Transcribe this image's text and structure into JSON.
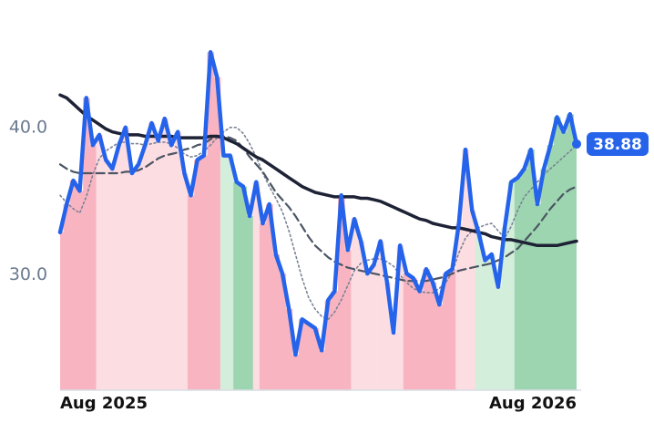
{
  "chart_data": {
    "type": "line",
    "categories": [
      "Aug 2025",
      null,
      null,
      null,
      null,
      null,
      null,
      null,
      null,
      null,
      null,
      null,
      null,
      null,
      null,
      null,
      null,
      null,
      null,
      null,
      null,
      null,
      null,
      null,
      null,
      null,
      null,
      null,
      null,
      null,
      null,
      null,
      null,
      null,
      null,
      null,
      null,
      null,
      null,
      null,
      null,
      null,
      null,
      null,
      null,
      null,
      null,
      null,
      null,
      null,
      null,
      null,
      null,
      null,
      null,
      null,
      null,
      null,
      null,
      null,
      null,
      null,
      null,
      null,
      null,
      null,
      null,
      null,
      null,
      null,
      null,
      null,
      null,
      null,
      null,
      null,
      null,
      null,
      null,
      "Aug 2026"
    ],
    "series": [
      {
        "color": "#2563eb",
        "values": [
          32.9,
          34.8,
          36.4,
          35.7,
          42.0,
          38.8,
          39.5,
          37.8,
          37.2,
          38.8,
          40.0,
          36.9,
          37.5,
          38.8,
          40.3,
          39.1,
          40.6,
          38.8,
          39.7,
          36.9,
          35.4,
          37.8,
          38.1,
          45.1,
          43.4,
          38.1,
          38.1,
          36.3,
          36.0,
          34.0,
          36.3,
          33.5,
          34.8,
          31.4,
          30.1,
          27.7,
          24.6,
          27.0,
          26.7,
          26.4,
          24.9,
          28.3,
          28.9,
          35.4,
          31.7,
          33.8,
          32.3,
          30.1,
          30.7,
          32.3,
          29.5,
          26.1,
          32.0,
          30.1,
          29.8,
          28.9,
          30.4,
          29.5,
          28.0,
          30.1,
          30.4,
          33.5,
          38.5,
          34.4,
          32.9,
          31.0,
          31.4,
          29.2,
          33.2,
          36.3,
          36.6,
          37.2,
          38.5,
          34.8,
          37.2,
          38.8,
          40.7,
          39.7,
          40.9,
          38.88
        ]
      },
      {
        "color": "#1e2235",
        "values": [
          42.2,
          42.0,
          41.6,
          41.2,
          40.8,
          40.5,
          40.2,
          39.9,
          39.7,
          39.6,
          39.5,
          39.5,
          39.5,
          39.4,
          39.4,
          39.4,
          39.4,
          39.4,
          39.3,
          39.3,
          39.3,
          39.3,
          39.3,
          39.4,
          39.4,
          39.3,
          39.1,
          38.9,
          38.6,
          38.3,
          38.0,
          37.8,
          37.5,
          37.2,
          36.9,
          36.6,
          36.3,
          36.0,
          35.8,
          35.6,
          35.5,
          35.4,
          35.3,
          35.3,
          35.3,
          35.3,
          35.2,
          35.2,
          35.1,
          35.0,
          34.8,
          34.6,
          34.4,
          34.2,
          34.0,
          33.8,
          33.7,
          33.5,
          33.4,
          33.3,
          33.2,
          33.2,
          33.1,
          33.0,
          32.9,
          32.8,
          32.6,
          32.5,
          32.4,
          32.4,
          32.3,
          32.2,
          32.1,
          32.0,
          32.0,
          32.0,
          32.0,
          32.1,
          32.2,
          32.3
        ]
      },
      {
        "color": "#4b5563",
        "values": [
          37.5,
          37.2,
          37.0,
          36.9,
          36.9,
          36.9,
          36.9,
          36.9,
          36.9,
          36.9,
          37.0,
          37.0,
          37.1,
          37.3,
          37.6,
          37.9,
          38.1,
          38.2,
          38.3,
          38.5,
          38.6,
          38.8,
          38.9,
          39.2,
          39.4,
          39.4,
          39.3,
          39.1,
          38.6,
          38.0,
          37.5,
          37.0,
          36.3,
          35.6,
          35.1,
          34.6,
          34.0,
          33.3,
          32.6,
          32.0,
          31.6,
          31.2,
          30.9,
          30.7,
          30.5,
          30.4,
          30.3,
          30.2,
          30.1,
          30.0,
          29.9,
          29.8,
          29.7,
          29.6,
          29.6,
          29.6,
          29.6,
          29.7,
          29.8,
          29.9,
          30.1,
          30.3,
          30.4,
          30.5,
          30.6,
          30.7,
          30.8,
          31.0,
          31.2,
          31.5,
          31.8,
          32.3,
          32.8,
          33.3,
          33.9,
          34.5,
          35.0,
          35.5,
          35.8,
          36.0
        ]
      },
      {
        "color": "#7a8296",
        "values": [
          35.4,
          34.9,
          34.5,
          34.2,
          35.3,
          36.8,
          37.9,
          38.4,
          38.7,
          39.0,
          39.0,
          38.9,
          38.9,
          38.8,
          38.9,
          39.0,
          39.0,
          38.9,
          38.6,
          38.2,
          38.0,
          38.1,
          38.4,
          38.8,
          39.3,
          39.7,
          40.0,
          40.0,
          39.6,
          38.9,
          38.0,
          36.9,
          36.0,
          35.2,
          34.3,
          33.0,
          31.4,
          29.8,
          28.5,
          27.7,
          27.2,
          27.0,
          27.5,
          28.3,
          29.3,
          30.3,
          30.8,
          31.0,
          31.1,
          31.1,
          30.9,
          30.6,
          30.0,
          29.5,
          29.1,
          28.9,
          28.8,
          28.8,
          29.1,
          29.5,
          30.2,
          31.5,
          32.5,
          33.0,
          33.2,
          33.4,
          33.5,
          33.0,
          32.5,
          33.3,
          34.4,
          35.3,
          35.8,
          36.3,
          36.8,
          37.2,
          37.6,
          38.0,
          38.4,
          38.8
        ]
      }
    ],
    "bar_colors": [
      "#f8b5c1",
      "#f8b5c1",
      "#f8b5c1",
      "#f8b5c1",
      "#f8b5c1",
      "#f8b5c1",
      "#fcdde2",
      "#fcdde2",
      "#fcdde2",
      "#fcdde2",
      "#fcdde2",
      "#fcdde2",
      "#fcdde2",
      "#fcdde2",
      "#fcdde2",
      "#fcdde2",
      "#fcdde2",
      "#fcdde2",
      "#fcdde2",
      "#fcdde2",
      "#f8b5c1",
      "#f8b5c1",
      "#f8b5c1",
      "#f8b5c1",
      "#f8b5c1",
      "#d4eedc",
      "#d4eedc",
      "#9dd5b0",
      "#9dd5b0",
      "#9dd5b0",
      "#fcdde2",
      "#f8b5c1",
      "#f8b5c1",
      "#f8b5c1",
      "#f8b5c1",
      "#f8b5c1",
      "#f8b5c1",
      "#f8b5c1",
      "#f8b5c1",
      "#f8b5c1",
      "#f8b5c1",
      "#f8b5c1",
      "#f8b5c1",
      "#f8b5c1",
      "#f8b5c1",
      "#fcdde2",
      "#fcdde2",
      "#fcdde2",
      "#fcdde2",
      "#fcdde2",
      "#fcdde2",
      "#fcdde2",
      "#fcdde2",
      "#f8b5c1",
      "#f8b5c1",
      "#f8b5c1",
      "#f8b5c1",
      "#f8b5c1",
      "#f8b5c1",
      "#f8b5c1",
      "#f8b5c1",
      "#fcdde2",
      "#fcdde2",
      "#fcdde2",
      "#d4eedc",
      "#d4eedc",
      "#d4eedc",
      "#d4eedc",
      "#d4eedc",
      "#d4eedc",
      "#9dd5b0",
      "#9dd5b0",
      "#9dd5b0",
      "#9dd5b0",
      "#9dd5b0",
      "#9dd5b0",
      "#9dd5b0",
      "#9dd5b0",
      "#9dd5b0",
      "#9dd5b0"
    ],
    "ylim": [
      22.2,
      47.4
    ],
    "yticks": [
      {
        "value": 30,
        "label": "30.0"
      },
      {
        "value": 40,
        "label": "40.0"
      }
    ],
    "grid": false
  }
}
